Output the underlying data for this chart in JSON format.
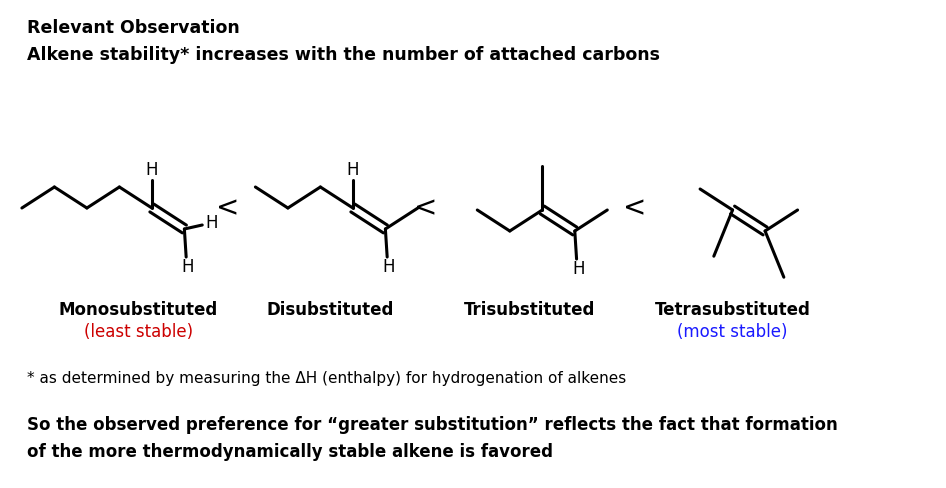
{
  "bg_color": "#ffffff",
  "title1": "Relevant Observation",
  "title2": "Alkene stability* increases with the number of attached carbons",
  "labels": [
    "Monosubstituted",
    "Disubstituted",
    "Trisubstituted",
    "Tetrasubstituted"
  ],
  "sublabels": [
    "(least stable)",
    "",
    "",
    "(most stable)"
  ],
  "sublabel_colors": [
    "#cc0000",
    "",
    "",
    "#1a1aff"
  ],
  "footnote": "* as determined by measuring the ΔH (enthalpy) for hydrogenation of alkenes",
  "conclusion1": "So the observed preference for “greater substitution” reflects the fact that formation",
  "conclusion2": "of the more thermodynamically stable alkene is favored"
}
